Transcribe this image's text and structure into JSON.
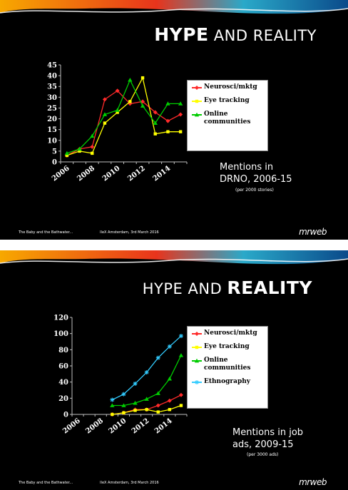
{
  "slides": [
    {
      "title_light_before": "",
      "title_strong": "HYPE",
      "title_light_after": " AND REALITY",
      "caption_lines": [
        "Mentions in",
        "DRNO, 2006-15"
      ],
      "caption_sub": "(per 2000 stories)",
      "footer_left": "The Baby and the Bathwater...",
      "footer_mid": "IIeX Amsterdam, 3rd March 2016",
      "logo": "mrweb"
    },
    {
      "title_light_before": "HYPE AND ",
      "title_strong": "REALITY",
      "title_light_after": "",
      "caption_lines": [
        "Mentions in job",
        "ads, 2009-15"
      ],
      "caption_sub": "(per 3000 ads)",
      "footer_left": "The Baby and the Bathwater...",
      "footer_mid": "IIeX Amsterdam, 3rd March 2016",
      "logo": "mrweb"
    }
  ],
  "colors": {
    "red": "#ff2a2a",
    "yellow": "#ffff00",
    "green": "#00cc00",
    "cyan": "#33ccff",
    "axis": "#c0c0c0",
    "slide_bg": "#000000"
  },
  "chart_data": [
    {
      "type": "line",
      "x": [
        2006,
        2007,
        2008,
        2009,
        2010,
        2011,
        2012,
        2013,
        2014,
        2015
      ],
      "xticks": [
        "2006",
        "2008",
        "2010",
        "2012",
        "2014"
      ],
      "ylim": [
        0,
        45
      ],
      "yticks": [
        0,
        5,
        10,
        15,
        20,
        25,
        30,
        35,
        40,
        45
      ],
      "grid": false,
      "legend": "right",
      "series": [
        {
          "name": "Neurosci/mktg",
          "color": "#ff2a2a",
          "marker": "diamond",
          "values": [
            3,
            6,
            7,
            29,
            33,
            27,
            28,
            23,
            19,
            22
          ]
        },
        {
          "name": "Eye tracking",
          "color": "#ffff00",
          "marker": "square",
          "values": [
            3,
            5,
            4,
            18,
            23,
            28,
            39,
            13,
            14,
            14
          ]
        },
        {
          "name": "Online communities",
          "color": "#00cc00",
          "marker": "triangle",
          "values": [
            4,
            6,
            12,
            22,
            24,
            38,
            26,
            18,
            27,
            27
          ]
        }
      ]
    },
    {
      "type": "line",
      "x": [
        2006,
        2007,
        2008,
        2009,
        2010,
        2011,
        2012,
        2013,
        2014,
        2015
      ],
      "xticks": [
        "2006",
        "2008",
        "2010",
        "2012",
        "2014"
      ],
      "ylim": [
        0,
        120
      ],
      "yticks": [
        0,
        20,
        40,
        60,
        80,
        100,
        120
      ],
      "grid": false,
      "legend": "right",
      "series": [
        {
          "name": "Neurosci/mktg",
          "color": "#ff2a2a",
          "marker": "diamond",
          "values": [
            null,
            null,
            null,
            0,
            2,
            6,
            6,
            11,
            17,
            24
          ]
        },
        {
          "name": "Eye tracking",
          "color": "#ffff00",
          "marker": "square",
          "values": [
            null,
            null,
            null,
            0,
            2,
            5,
            6,
            3,
            6,
            11
          ]
        },
        {
          "name": "Online communities",
          "color": "#00cc00",
          "marker": "triangle",
          "values": [
            null,
            null,
            null,
            11,
            11,
            14,
            19,
            26,
            44,
            73
          ]
        },
        {
          "name": "Ethnography",
          "color": "#33ccff",
          "marker": "star",
          "values": [
            null,
            null,
            null,
            18,
            25,
            38,
            52,
            70,
            84,
            97
          ]
        }
      ]
    }
  ]
}
